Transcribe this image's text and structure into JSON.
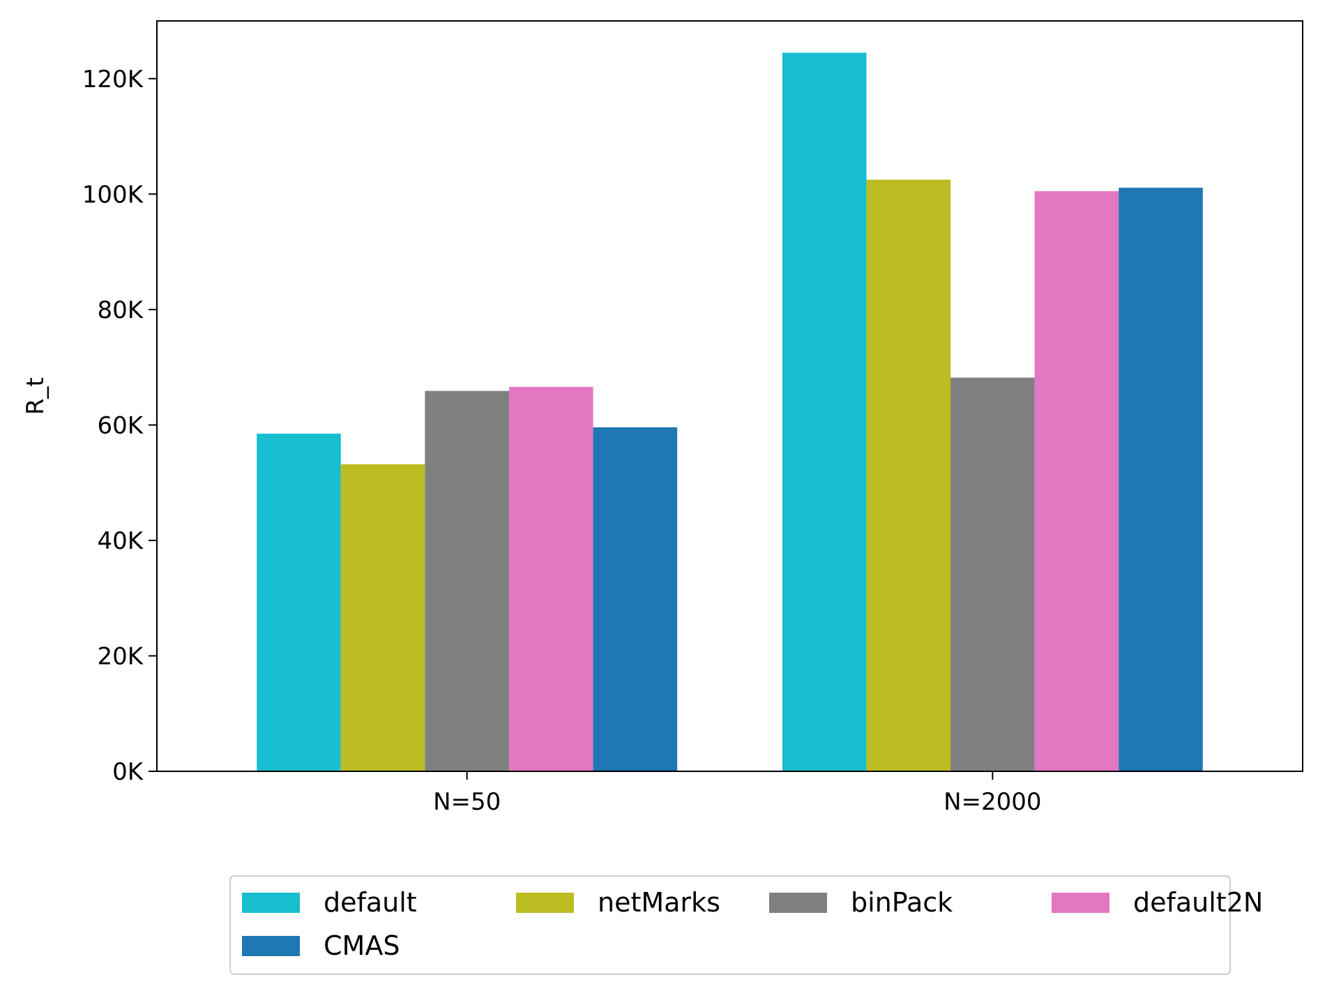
{
  "chart_data": {
    "type": "bar",
    "categories": [
      "N=50",
      "N=2000"
    ],
    "ylabel": "R_t",
    "xlabel": "",
    "ylim": [
      0,
      130000
    ],
    "yticks": [
      0,
      20000,
      40000,
      60000,
      80000,
      100000,
      120000
    ],
    "ytick_labels": [
      "0K",
      "20K",
      "40K",
      "60K",
      "80K",
      "100K",
      "120K"
    ],
    "grid": false,
    "legend_position": "bottom-center, outside plot",
    "series": [
      {
        "name": "default",
        "color": "#17becf",
        "values": [
          58500,
          124500
        ]
      },
      {
        "name": "netMarks",
        "color": "#bcbd22",
        "values": [
          53200,
          102500
        ]
      },
      {
        "name": "binPack",
        "color": "#7f7f7f",
        "values": [
          65900,
          68200
        ]
      },
      {
        "name": "default2N",
        "color": "#e377c2",
        "values": [
          66600,
          100500
        ]
      },
      {
        "name": "CMAS",
        "color": "#1f77b4",
        "values": [
          59600,
          101100
        ]
      }
    ]
  }
}
